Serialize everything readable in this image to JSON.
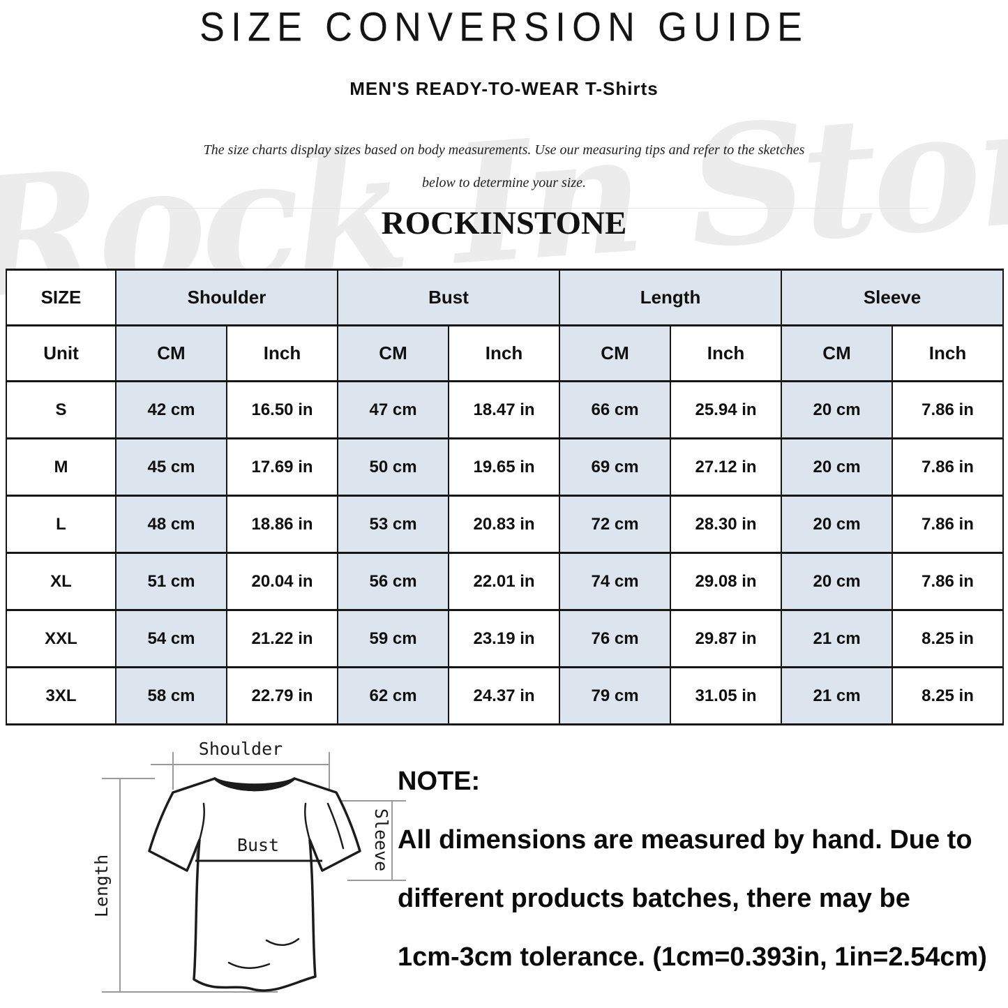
{
  "page": {
    "title": "SIZE CONVERSION GUIDE",
    "subtitle": "MEN'S READY-TO-WEAR T-Shirts",
    "description_line1": "The size charts display sizes based on body measurements. Use our measuring tips and refer to the sketches",
    "description_line2": "below to determine your size.",
    "brand": "ROCKINSTONE",
    "watermark": "Rock In Stone"
  },
  "colors": {
    "cell_blue": "#dce4ee",
    "table_border": "#161616",
    "watermark_gray": "#ececec"
  },
  "table": {
    "size_header": "SIZE",
    "unit_label": "Unit",
    "unit_cm": "CM",
    "unit_inch": "Inch",
    "groups": [
      "Shoulder",
      "Bust",
      "Length",
      "Sleeve"
    ],
    "rows": [
      {
        "size": "S",
        "cells": [
          "42 cm",
          "16.50 in",
          "47 cm",
          "18.47 in",
          "66 cm",
          "25.94 in",
          "20 cm",
          "7.86 in"
        ]
      },
      {
        "size": "M",
        "cells": [
          "45 cm",
          "17.69 in",
          "50 cm",
          "19.65 in",
          "69 cm",
          "27.12 in",
          "20 cm",
          "7.86 in"
        ]
      },
      {
        "size": "L",
        "cells": [
          "48 cm",
          "18.86 in",
          "53 cm",
          "20.83 in",
          "72 cm",
          "28.30 in",
          "20 cm",
          "7.86 in"
        ]
      },
      {
        "size": "XL",
        "cells": [
          "51 cm",
          "20.04 in",
          "56 cm",
          "22.01 in",
          "74 cm",
          "29.08 in",
          "20 cm",
          "7.86 in"
        ]
      },
      {
        "size": "XXL",
        "cells": [
          "54 cm",
          "21.22 in",
          "59 cm",
          "23.19 in",
          "76 cm",
          "29.87 in",
          "21 cm",
          "8.25 in"
        ]
      },
      {
        "size": "3XL",
        "cells": [
          "58 cm",
          "22.79 in",
          "62 cm",
          "24.37 in",
          "79 cm",
          "31.05 in",
          "21 cm",
          "8.25 in"
        ]
      }
    ]
  },
  "diagram": {
    "shoulder_label": "Shoulder",
    "bust_label": "Bust",
    "length_label": "Length",
    "sleeve_label": "Sleeve"
  },
  "note": {
    "heading": "NOTE:",
    "line1": "All dimensions are measured by hand. Due to",
    "line2": "different products batches, there may be",
    "line3": "1cm-3cm tolerance. (1cm=0.393in, 1in=2.54cm)"
  }
}
